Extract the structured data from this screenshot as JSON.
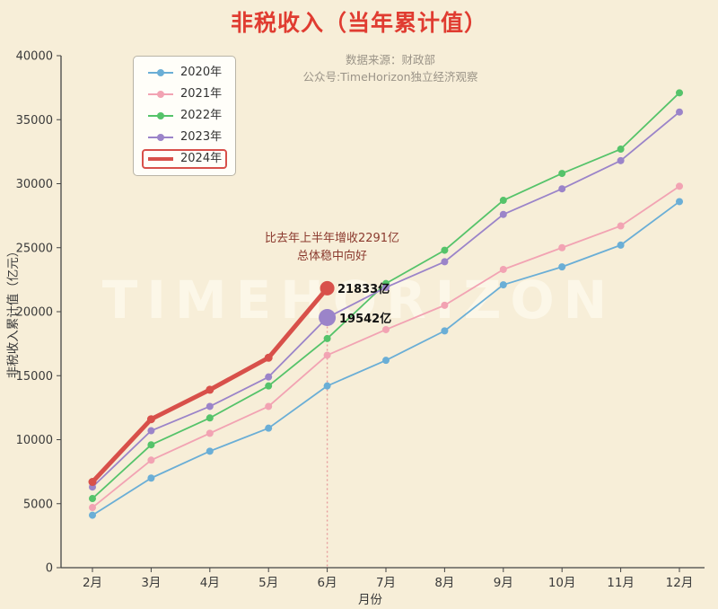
{
  "title": "非税收入（当年累计值）",
  "source_line1": "数据来源：财政部",
  "source_line2": "公众号:TimeHorizon独立经济观察",
  "watermark": "TIMEHORIZON",
  "annotation": {
    "line1": "比去年上半年增收2291亿",
    "line2": "总体稳中向好",
    "label_2024": "21833亿",
    "label_2023": "19542亿"
  },
  "chart_data": {
    "type": "line",
    "categories": [
      "2月",
      "3月",
      "4月",
      "5月",
      "6月",
      "7月",
      "8月",
      "9月",
      "10月",
      "11月",
      "12月"
    ],
    "xlabel": "月份",
    "ylabel": "非税收入累计值（亿元）",
    "ylim": [
      0,
      40000
    ],
    "ytick_step": 5000,
    "legend_position": "top-left",
    "highlight_index": 4,
    "series": [
      {
        "name": "2020年",
        "color": "#6aaed6",
        "values": [
          4100,
          7000,
          9100,
          10900,
          14200,
          16200,
          18500,
          22100,
          23500,
          25200,
          28600
        ]
      },
      {
        "name": "2021年",
        "color": "#f2a3b3",
        "values": [
          4700,
          8400,
          10500,
          12600,
          16600,
          18600,
          20500,
          23300,
          25000,
          26700,
          29800
        ]
      },
      {
        "name": "2022年",
        "color": "#55c36a",
        "values": [
          5400,
          9600,
          11700,
          14200,
          17900,
          22200,
          24800,
          28700,
          30800,
          32700,
          37100
        ]
      },
      {
        "name": "2023年",
        "color": "#9b84c9",
        "big_dot": true,
        "values": [
          6300,
          10700,
          12600,
          14900,
          19542,
          21900,
          23900,
          27600,
          29600,
          31800,
          35600
        ]
      },
      {
        "name": "2024年",
        "color": "#d8504a",
        "width": 5,
        "end_dot": true,
        "values": [
          6700,
          11600,
          13900,
          16400,
          21833,
          null,
          null,
          null,
          null,
          null,
          null
        ]
      }
    ]
  }
}
